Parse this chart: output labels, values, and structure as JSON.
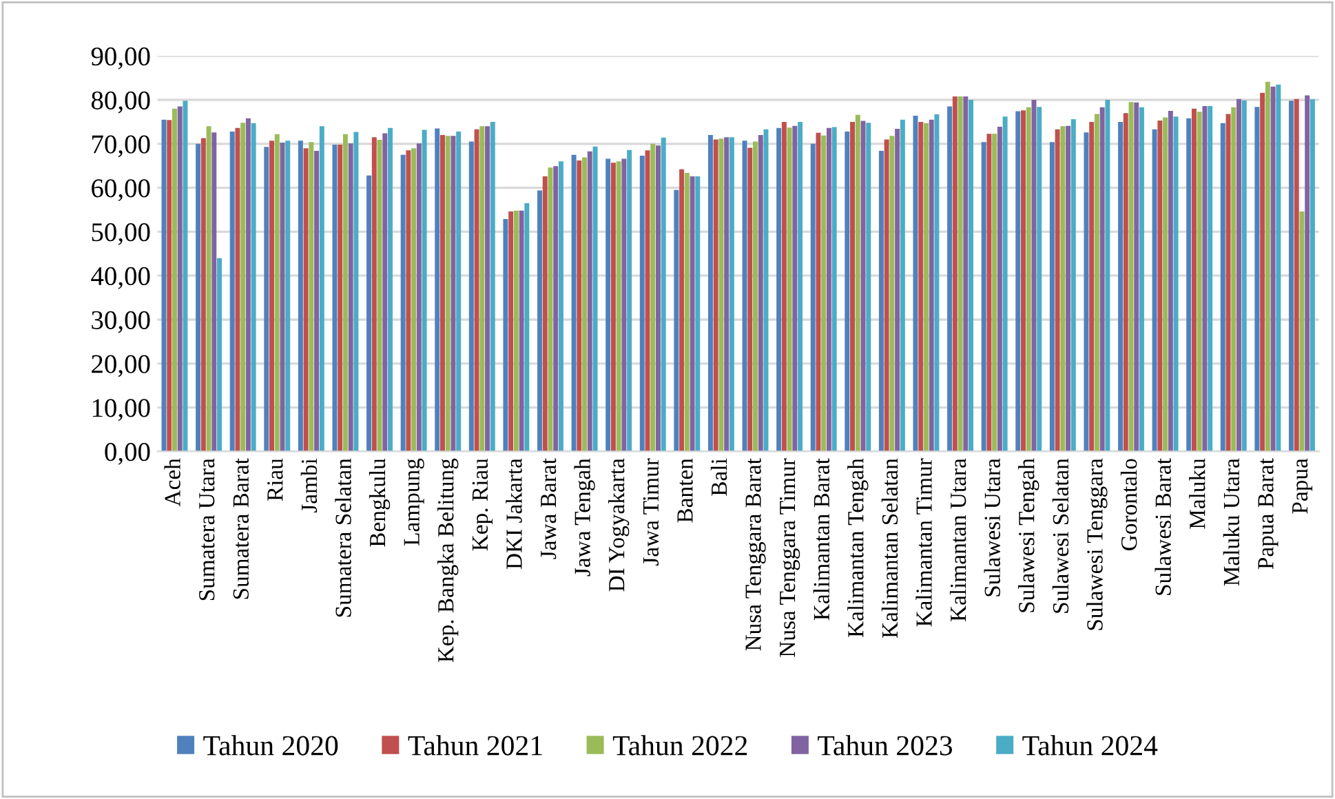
{
  "chart_data": {
    "type": "bar",
    "categories": [
      "Aceh",
      "Sumatera Utara",
      "Sumatera Barat",
      "Riau",
      "Jambi",
      "Sumatera Selatan",
      "Bengkulu",
      "Lampung",
      "Kep. Bangka Belitung",
      "Kep. Riau",
      "DKI Jakarta",
      "Jawa Barat",
      "Jawa Tengah",
      "DI Yogyakarta",
      "Jawa Timur",
      "Banten",
      "Bali",
      "Nusa Tenggara Barat",
      "Nusa Tenggara Timur",
      "Kalimantan Barat",
      "Kalimantan Tengah",
      "Kalimantan Selatan",
      "Kalimantan Timur",
      "Kalimantan Utara",
      "Sulawesi Utara",
      "Sulawesi Tengah",
      "Sulawesi Selatan",
      "Sulawesi Tenggara",
      "Gorontalo",
      "Sulawesi Barat",
      "Maluku",
      "Maluku Utara",
      "Papua Barat",
      "Papua"
    ],
    "series": [
      {
        "name": "Tahun 2020",
        "color": "#4f81bd",
        "values": [
          75.5,
          70,
          72.8,
          69.3,
          70.7,
          69.8,
          62.8,
          67.5,
          73.5,
          70.5,
          52.9,
          59.4,
          67.5,
          66.6,
          67.3,
          59.5,
          72,
          70.7,
          73.6,
          70,
          72.8,
          68.4,
          76.4,
          78.5,
          70.4,
          77.4,
          70.4,
          72.6,
          75,
          73.3,
          75.8,
          74.7,
          78.4,
          79.8
        ]
      },
      {
        "name": "Tahun 2021",
        "color": "#c0504d",
        "values": [
          75.4,
          71.3,
          73.6,
          70.7,
          69,
          69.8,
          71.5,
          68.5,
          72,
          73.3,
          54.6,
          62.6,
          66.2,
          65.7,
          68.5,
          64.2,
          71,
          69.1,
          75,
          72.5,
          75,
          71,
          75,
          80.8,
          72.3,
          77.6,
          73.3,
          75,
          77,
          75.3,
          78,
          76.8,
          81.6,
          80.2
        ]
      },
      {
        "name": "Tahun 2022",
        "color": "#9bbb59",
        "values": [
          78,
          74,
          74.8,
          72.2,
          70.4,
          72.2,
          70.9,
          69,
          71.8,
          74,
          54.8,
          64.6,
          66.9,
          66,
          70,
          63.4,
          71.2,
          70.5,
          73.7,
          71.9,
          76.6,
          71.8,
          74.7,
          80.8,
          72.3,
          78.3,
          74,
          76.8,
          79.5,
          76,
          77.3,
          78.3,
          84.1,
          54.6
        ]
      },
      {
        "name": "Tahun 2023",
        "color": "#8064a2",
        "values": [
          78.5,
          72.6,
          75.8,
          70.3,
          68.4,
          70.1,
          72.4,
          70.1,
          71.8,
          74,
          54.8,
          64.9,
          68.3,
          66.6,
          69.6,
          62.6,
          71.5,
          72,
          74.1,
          73.6,
          75.2,
          73.4,
          75.5,
          80.8,
          73.9,
          80,
          74.1,
          78.3,
          79.4,
          77.5,
          78.6,
          80.2,
          83,
          81
        ]
      },
      {
        "name": "Tahun 2024",
        "color": "#4bacc6",
        "values": [
          79.8,
          44,
          74.7,
          70.7,
          74,
          72.7,
          73.6,
          73.2,
          72.8,
          75,
          56.5,
          66,
          69.4,
          68.6,
          71.4,
          62.6,
          71.5,
          73.3,
          75,
          73.8,
          74.8,
          75.5,
          76.7,
          80,
          76.2,
          78.4,
          75.6,
          80,
          78.3,
          76.2,
          78.6,
          79.9,
          83.5,
          80.1
        ]
      }
    ],
    "ylim": [
      0,
      90
    ],
    "yticks": [
      {
        "value": 0,
        "label": "0,00"
      },
      {
        "value": 10,
        "label": "10,00"
      },
      {
        "value": 20,
        "label": "20,00"
      },
      {
        "value": 30,
        "label": "30,00"
      },
      {
        "value": 40,
        "label": "40,00"
      },
      {
        "value": 50,
        "label": "50,00"
      },
      {
        "value": 60,
        "label": "60,00"
      },
      {
        "value": 70,
        "label": "70,00"
      },
      {
        "value": 80,
        "label": "80,00"
      },
      {
        "value": 90,
        "label": "90,00"
      }
    ],
    "grid": "y",
    "legend": "bottom"
  }
}
